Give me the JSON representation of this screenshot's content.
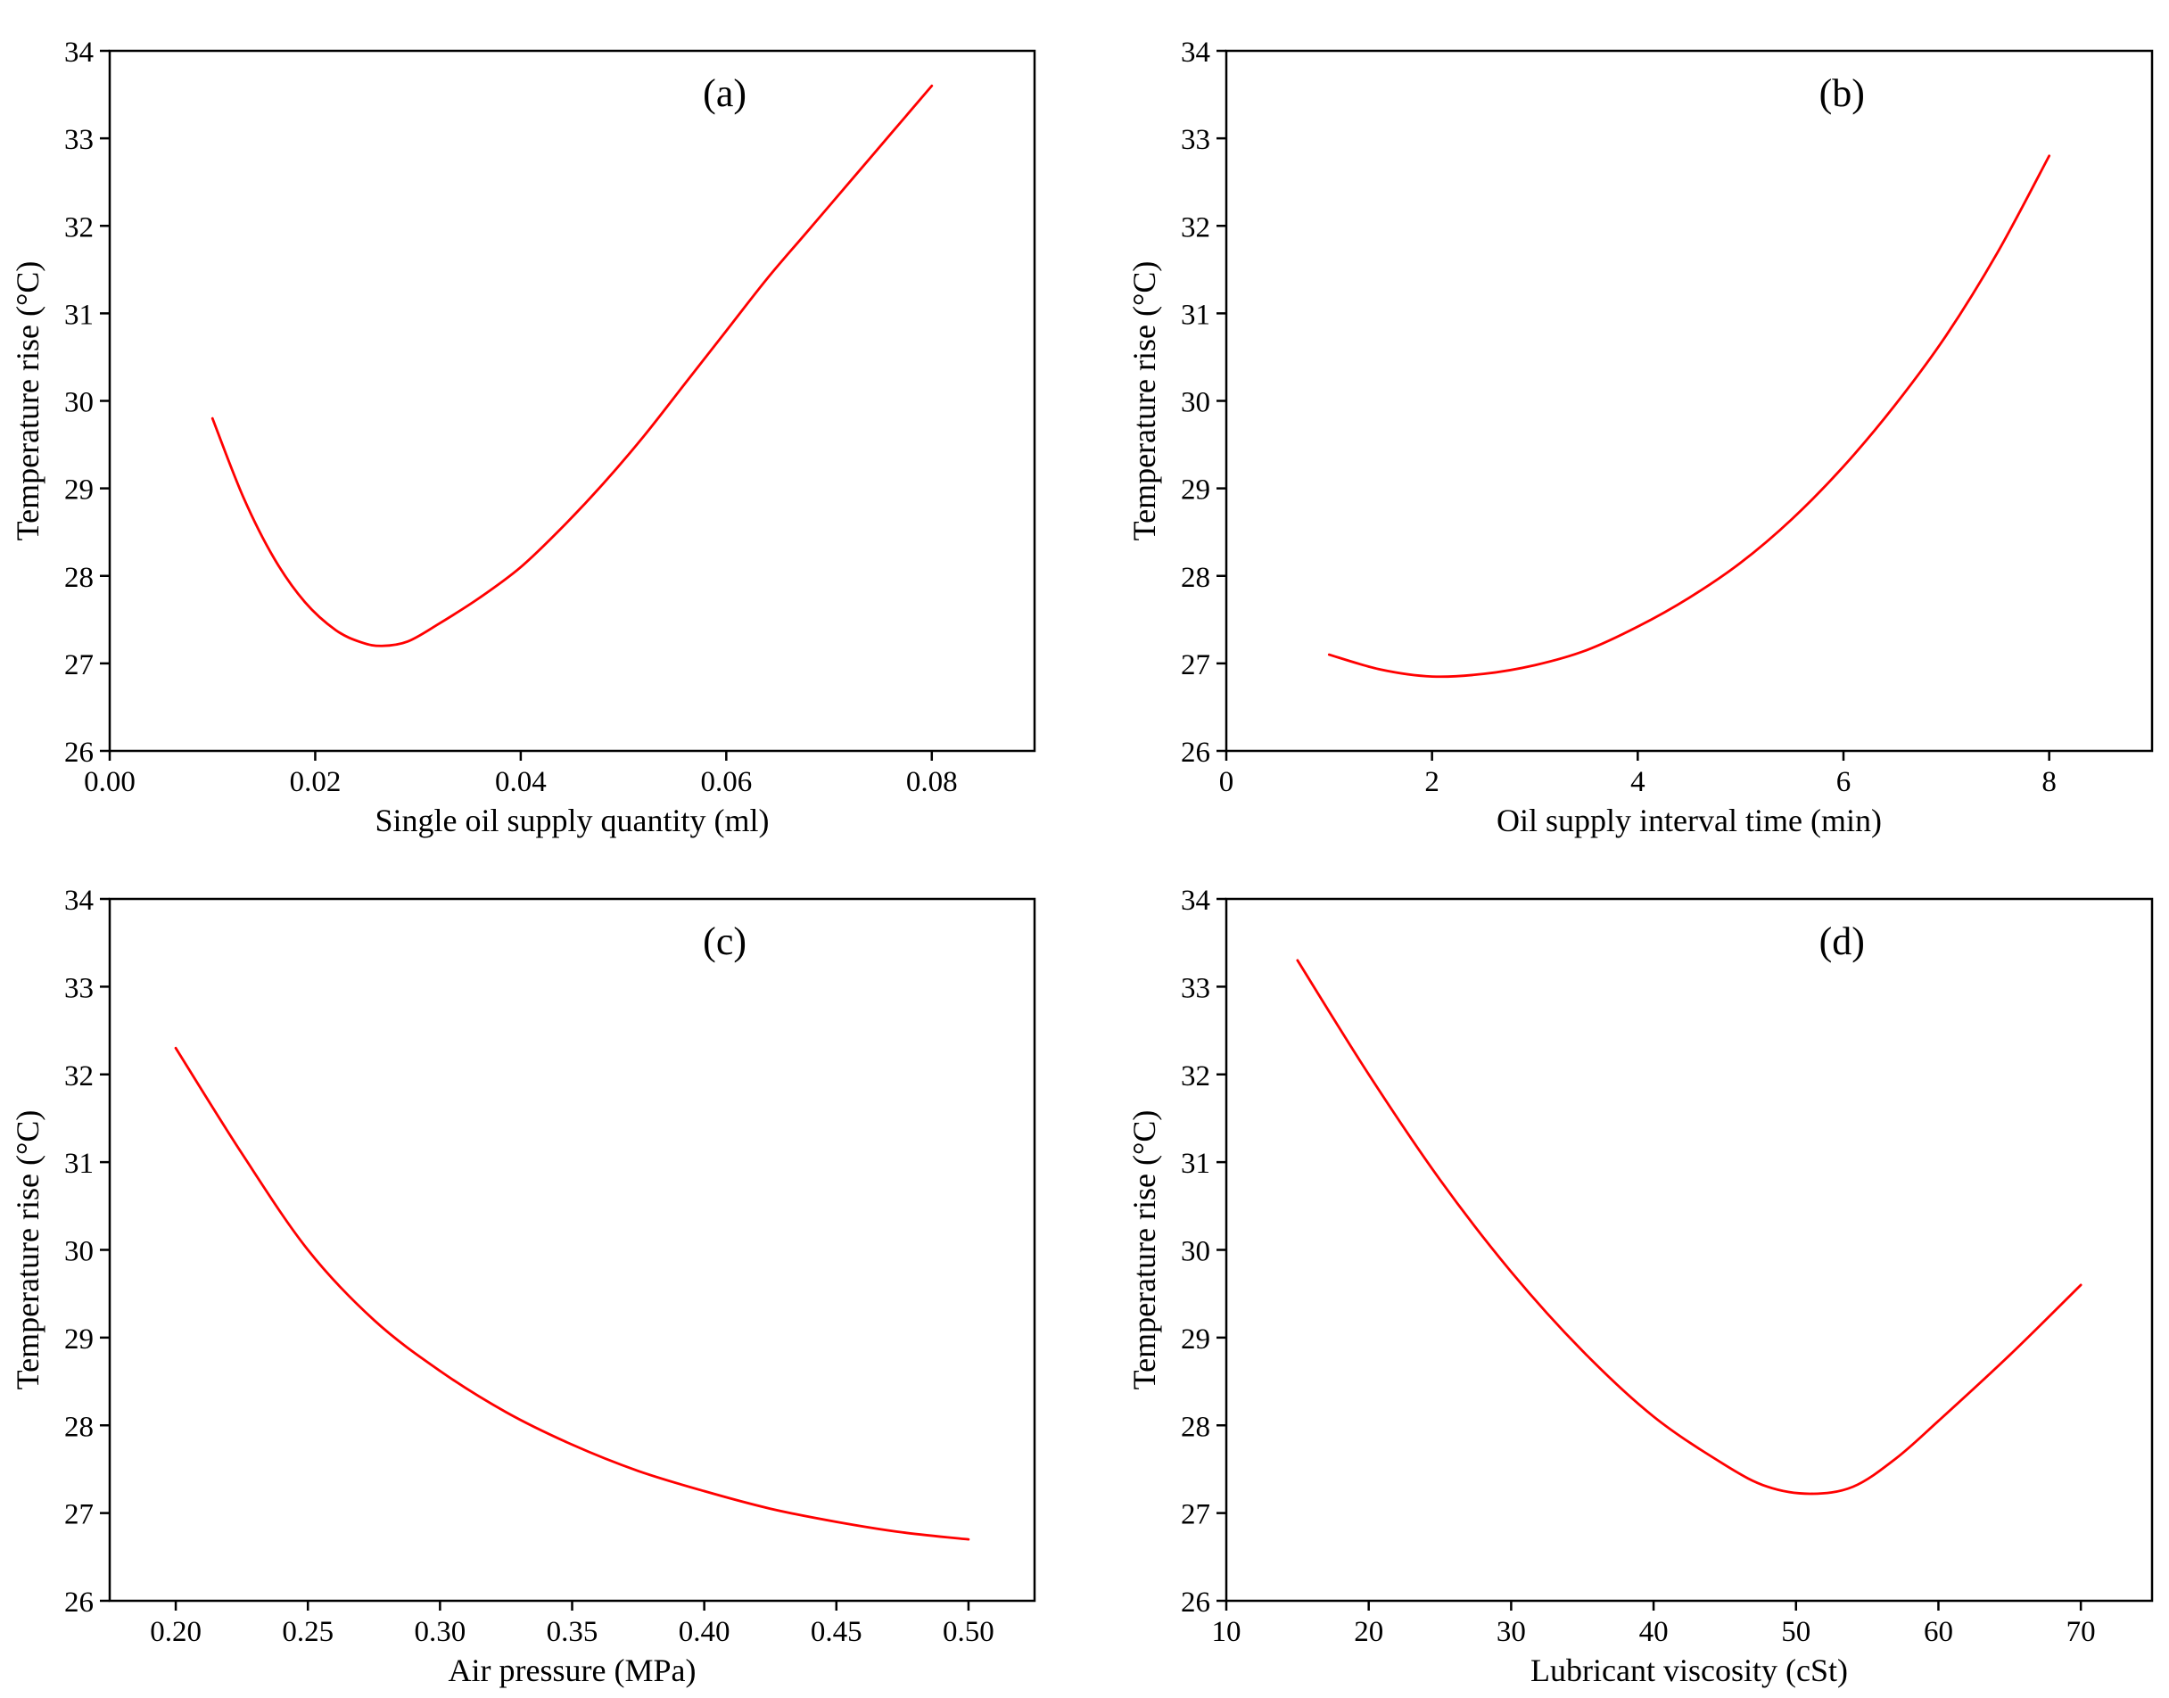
{
  "chart_data": [
    {
      "type": "line",
      "panel_label": "(a)",
      "xlabel": "Single oil supply quantity (ml)",
      "ylabel": "Temperature rise (°C)",
      "xlim": [
        0,
        0.09
      ],
      "ylim": [
        26,
        34
      ],
      "xticks": [
        0.0,
        0.02,
        0.04,
        0.06,
        0.08
      ],
      "xtick_labels": [
        "0.00",
        "0.02",
        "0.04",
        "0.06",
        "0.08"
      ],
      "yticks": [
        26,
        27,
        28,
        29,
        30,
        31,
        32,
        33,
        34
      ],
      "ytick_labels": [
        "26",
        "27",
        "28",
        "29",
        "30",
        "31",
        "32",
        "33",
        "34"
      ],
      "line_color": "#ff0000",
      "x": [
        0.01,
        0.013,
        0.016,
        0.019,
        0.022,
        0.0245,
        0.0265,
        0.029,
        0.032,
        0.036,
        0.04,
        0.044,
        0.048,
        0.052,
        0.056,
        0.06,
        0.064,
        0.068,
        0.072,
        0.076,
        0.08
      ],
      "y": [
        29.8,
        28.9,
        28.2,
        27.7,
        27.38,
        27.24,
        27.2,
        27.25,
        27.45,
        27.75,
        28.1,
        28.55,
        29.05,
        29.6,
        30.2,
        30.8,
        31.4,
        31.95,
        32.5,
        33.05,
        33.6
      ]
    },
    {
      "type": "line",
      "panel_label": "(b)",
      "xlabel": "Oil supply interval time (min)",
      "ylabel": "Temperature rise (°C)",
      "xlim": [
        0,
        9
      ],
      "ylim": [
        26,
        34
      ],
      "xticks": [
        0,
        2,
        4,
        6,
        8
      ],
      "xtick_labels": [
        "0",
        "2",
        "4",
        "6",
        "8"
      ],
      "yticks": [
        26,
        27,
        28,
        29,
        30,
        31,
        32,
        33,
        34
      ],
      "ytick_labels": [
        "26",
        "27",
        "28",
        "29",
        "30",
        "31",
        "32",
        "33",
        "34"
      ],
      "line_color": "#ff0000",
      "x": [
        1.0,
        1.5,
        2.0,
        2.5,
        3.0,
        3.5,
        4.0,
        4.5,
        5.0,
        5.5,
        6.0,
        6.5,
        7.0,
        7.5,
        8.0
      ],
      "y": [
        27.1,
        26.93,
        26.85,
        26.88,
        26.98,
        27.15,
        27.42,
        27.75,
        28.15,
        28.65,
        29.25,
        29.95,
        30.75,
        31.7,
        32.8
      ]
    },
    {
      "type": "line",
      "panel_label": "(c)",
      "xlabel": "Air pressure (MPa)",
      "ylabel": "Temperature rise (°C)",
      "xlim": [
        0.175,
        0.525
      ],
      "ylim": [
        26,
        34
      ],
      "xticks": [
        0.2,
        0.25,
        0.3,
        0.35,
        0.4,
        0.45,
        0.5
      ],
      "xtick_labels": [
        "0.20",
        "0.25",
        "0.30",
        "0.35",
        "0.40",
        "0.45",
        "0.50"
      ],
      "yticks": [
        26,
        27,
        28,
        29,
        30,
        31,
        32,
        33,
        34
      ],
      "ytick_labels": [
        "26",
        "27",
        "28",
        "29",
        "30",
        "31",
        "32",
        "33",
        "34"
      ],
      "line_color": "#ff0000",
      "x": [
        0.2,
        0.225,
        0.25,
        0.275,
        0.3,
        0.325,
        0.35,
        0.375,
        0.4,
        0.425,
        0.45,
        0.475,
        0.5
      ],
      "y": [
        32.3,
        31.1,
        30.0,
        29.2,
        28.62,
        28.15,
        27.78,
        27.48,
        27.25,
        27.05,
        26.9,
        26.78,
        26.7
      ]
    },
    {
      "type": "line",
      "panel_label": "(d)",
      "xlabel": "Lubricant viscosity (cSt)",
      "ylabel": "Temperature rise (°C)",
      "xlim": [
        10,
        75
      ],
      "ylim": [
        26,
        34
      ],
      "xticks": [
        10,
        20,
        30,
        40,
        50,
        60,
        70
      ],
      "xtick_labels": [
        "10",
        "20",
        "30",
        "40",
        "50",
        "60",
        "70"
      ],
      "yticks": [
        26,
        27,
        28,
        29,
        30,
        31,
        32,
        33,
        34
      ],
      "ytick_labels": [
        "26",
        "27",
        "28",
        "29",
        "30",
        "31",
        "32",
        "33",
        "34"
      ],
      "line_color": "#ff0000",
      "x": [
        15,
        20,
        25,
        30,
        35,
        40,
        45,
        48,
        51,
        54,
        57,
        60,
        65,
        70
      ],
      "y": [
        33.3,
        32.0,
        30.8,
        29.75,
        28.85,
        28.1,
        27.55,
        27.3,
        27.22,
        27.3,
        27.62,
        28.05,
        28.8,
        29.6
      ]
    }
  ]
}
